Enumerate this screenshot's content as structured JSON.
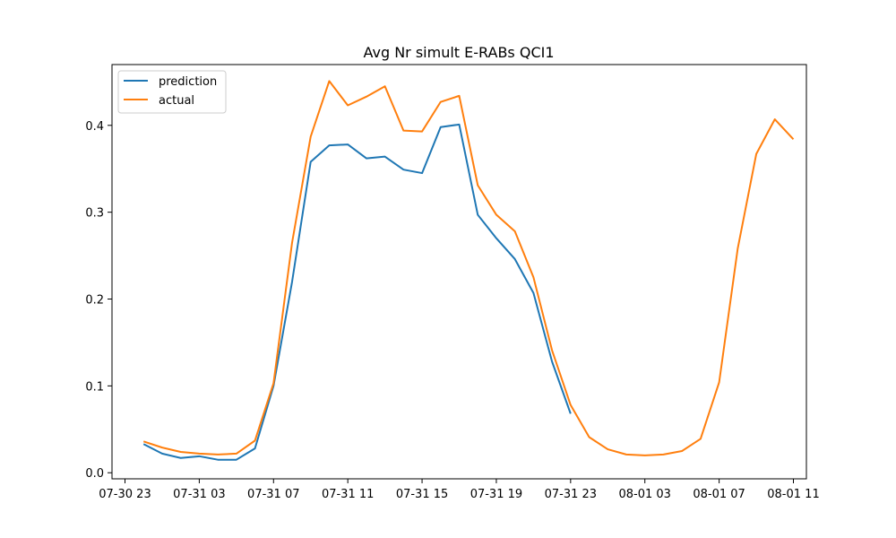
{
  "chart_data": {
    "type": "line",
    "title": "Avg Nr simult E-RABs QCI1",
    "xlabel": "",
    "ylabel": "",
    "x_unit": "hour",
    "x": [
      "2023-07-31 00:00",
      "2023-07-31 01:00",
      "2023-07-31 02:00",
      "2023-07-31 03:00",
      "2023-07-31 04:00",
      "2023-07-31 05:00",
      "2023-07-31 06:00",
      "2023-07-31 07:00",
      "2023-07-31 08:00",
      "2023-07-31 09:00",
      "2023-07-31 10:00",
      "2023-07-31 11:00",
      "2023-07-31 12:00",
      "2023-07-31 13:00",
      "2023-07-31 14:00",
      "2023-07-31 15:00",
      "2023-07-31 16:00",
      "2023-07-31 17:00",
      "2023-07-31 18:00",
      "2023-07-31 19:00",
      "2023-07-31 20:00",
      "2023-07-31 21:00",
      "2023-07-31 22:00",
      "2023-07-31 23:00",
      "2023-08-01 00:00",
      "2023-08-01 01:00",
      "2023-08-01 02:00",
      "2023-08-01 03:00",
      "2023-08-01 04:00",
      "2023-08-01 05:00",
      "2023-08-01 06:00",
      "2023-08-01 07:00",
      "2023-08-01 08:00",
      "2023-08-01 09:00",
      "2023-08-01 10:00",
      "2023-08-01 11:00"
    ],
    "series": [
      {
        "name": "prediction",
        "color": "#1f77b4",
        "values": [
          0.033,
          0.022,
          0.017,
          0.019,
          0.015,
          0.015,
          0.028,
          0.1,
          0.22,
          0.358,
          0.377,
          0.378,
          0.362,
          0.364,
          0.349,
          0.345,
          0.398,
          0.401,
          0.297,
          0.27,
          0.246,
          0.207,
          0.128,
          0.068,
          null,
          null,
          null,
          null,
          null,
          null,
          null,
          null,
          null,
          null,
          null,
          null
        ]
      },
      {
        "name": "actual",
        "color": "#ff7f0e",
        "values": [
          0.036,
          0.029,
          0.024,
          0.022,
          0.021,
          0.022,
          0.037,
          0.103,
          0.265,
          0.387,
          0.451,
          0.423,
          0.433,
          0.445,
          0.394,
          0.393,
          0.427,
          0.434,
          0.331,
          0.297,
          0.278,
          0.225,
          0.141,
          0.078,
          0.041,
          0.027,
          0.021,
          0.02,
          0.021,
          0.025,
          0.039,
          0.104,
          0.258,
          0.367,
          0.407,
          0.384
        ]
      }
    ],
    "xticks": [
      "07-30 23",
      "07-31 03",
      "07-31 07",
      "07-31 11",
      "07-31 15",
      "07-31 19",
      "07-31 23",
      "08-01 03",
      "08-01 07",
      "08-01 11"
    ],
    "xtick_hours": [
      -1,
      3,
      7,
      11,
      15,
      19,
      23,
      27,
      31,
      35
    ],
    "x_range_hours": [
      -1.7,
      35.7
    ],
    "yticks": [
      "0.0",
      "0.1",
      "0.2",
      "0.3",
      "0.4"
    ],
    "ytick_values": [
      0.0,
      0.1,
      0.2,
      0.3,
      0.4
    ],
    "ylim": [
      -0.007,
      0.47
    ],
    "grid": false,
    "legend_position": "top-left"
  }
}
